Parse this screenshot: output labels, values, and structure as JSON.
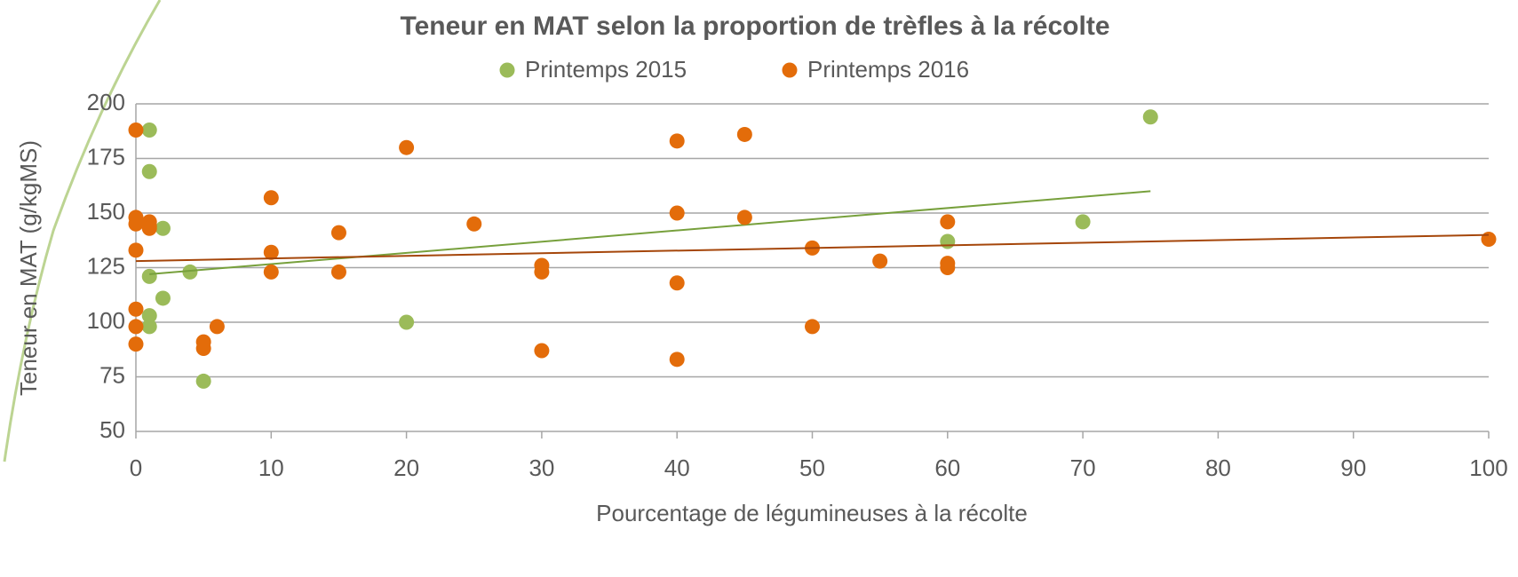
{
  "chart_data": {
    "type": "scatter",
    "title": "Teneur en MAT selon la proportion de trèfles à la récolte",
    "x_label": "Pourcentage de légumineuses à la récolte",
    "y_label": "Teneur en MAT (g/kgMS)",
    "xlim": [
      0,
      100
    ],
    "xticks": [
      0,
      10,
      20,
      30,
      40,
      50,
      60,
      70,
      80,
      90,
      100
    ],
    "ylim": [
      50,
      200
    ],
    "yticks": [
      50,
      75,
      100,
      125,
      150,
      175,
      200
    ],
    "grid": true,
    "legend": "top",
    "series": [
      {
        "name": "Printemps 2015",
        "color": "#9bbb59",
        "trend_color": "#77a03c",
        "x": [
          1,
          1,
          2,
          1,
          4,
          2,
          1,
          1,
          5,
          20,
          60,
          70,
          75
        ],
        "y": [
          188,
          169,
          143,
          121,
          123,
          111,
          103,
          98,
          73,
          100,
          137,
          146,
          194
        ],
        "trendline": {
          "x": [
            1,
            75
          ],
          "y": [
            122,
            160
          ]
        }
      },
      {
        "name": "Printemps 2016",
        "color": "#e36c0a",
        "trend_color": "#a5460a",
        "x": [
          0,
          0,
          0,
          0,
          0,
          0,
          0,
          1,
          1,
          1,
          5,
          5,
          6,
          10,
          10,
          10,
          15,
          15,
          20,
          25,
          30,
          30,
          30,
          40,
          40,
          40,
          40,
          45,
          45,
          50,
          50,
          55,
          60,
          60,
          60,
          100
        ],
        "y": [
          188,
          148,
          145,
          133,
          106,
          98,
          90,
          146,
          144,
          143,
          91,
          88,
          98,
          157,
          132,
          123,
          141,
          123,
          180,
          145,
          126,
          123,
          87,
          183,
          150,
          118,
          83,
          186,
          148,
          134,
          98,
          128,
          146,
          127,
          125,
          138
        ],
        "trendline": {
          "x": [
            0,
            100
          ],
          "y": [
            128,
            140
          ]
        }
      }
    ]
  }
}
